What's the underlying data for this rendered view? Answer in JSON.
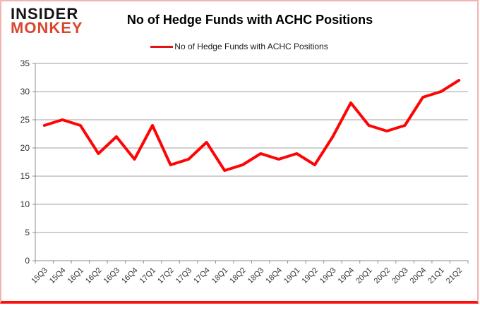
{
  "branding": {
    "line1": "INSIDER",
    "line2": "MONKEY",
    "logo_red": "#d9472e",
    "logo_black": "#151515"
  },
  "header": {
    "title": "No of Hedge Funds with ACHC Positions"
  },
  "legend": {
    "label": "No of Hedge Funds with ACHC Positions",
    "swatch_color": "#e21414"
  },
  "frame": {
    "border_color": "#f5b3af",
    "border_bottom_color": "#fb0f0f"
  },
  "chart_data": {
    "type": "line",
    "title": "No of Hedge Funds with ACHC Positions",
    "series_name": "No of Hedge Funds with ACHC Positions",
    "categories": [
      "15Q3",
      "15Q4",
      "16Q1",
      "16Q2",
      "16Q3",
      "16Q4",
      "17Q1",
      "17Q2",
      "17Q3",
      "17Q4",
      "18Q1",
      "18Q2",
      "18Q3",
      "18Q4",
      "19Q1",
      "19Q2",
      "19Q3",
      "19Q4",
      "20Q1",
      "20Q2",
      "20Q3",
      "20Q4",
      "21Q1",
      "21Q2"
    ],
    "values": [
      24,
      25,
      24,
      19,
      22,
      18,
      24,
      17,
      18,
      21,
      16,
      17,
      19,
      18,
      19,
      17,
      22,
      28,
      24,
      23,
      24,
      29,
      30,
      32
    ],
    "xlabel": "",
    "ylabel": "",
    "ylim": [
      0,
      35
    ],
    "ytick_step": 5,
    "grid": true,
    "legend_position": "top-center",
    "line_color": "#fe0505",
    "line_width": 4,
    "grid_color": "#a0a0a0",
    "axis_color": "#8c8c8c",
    "tick_label_color": "#303030",
    "x_tick_label_rotation_deg": -45
  }
}
